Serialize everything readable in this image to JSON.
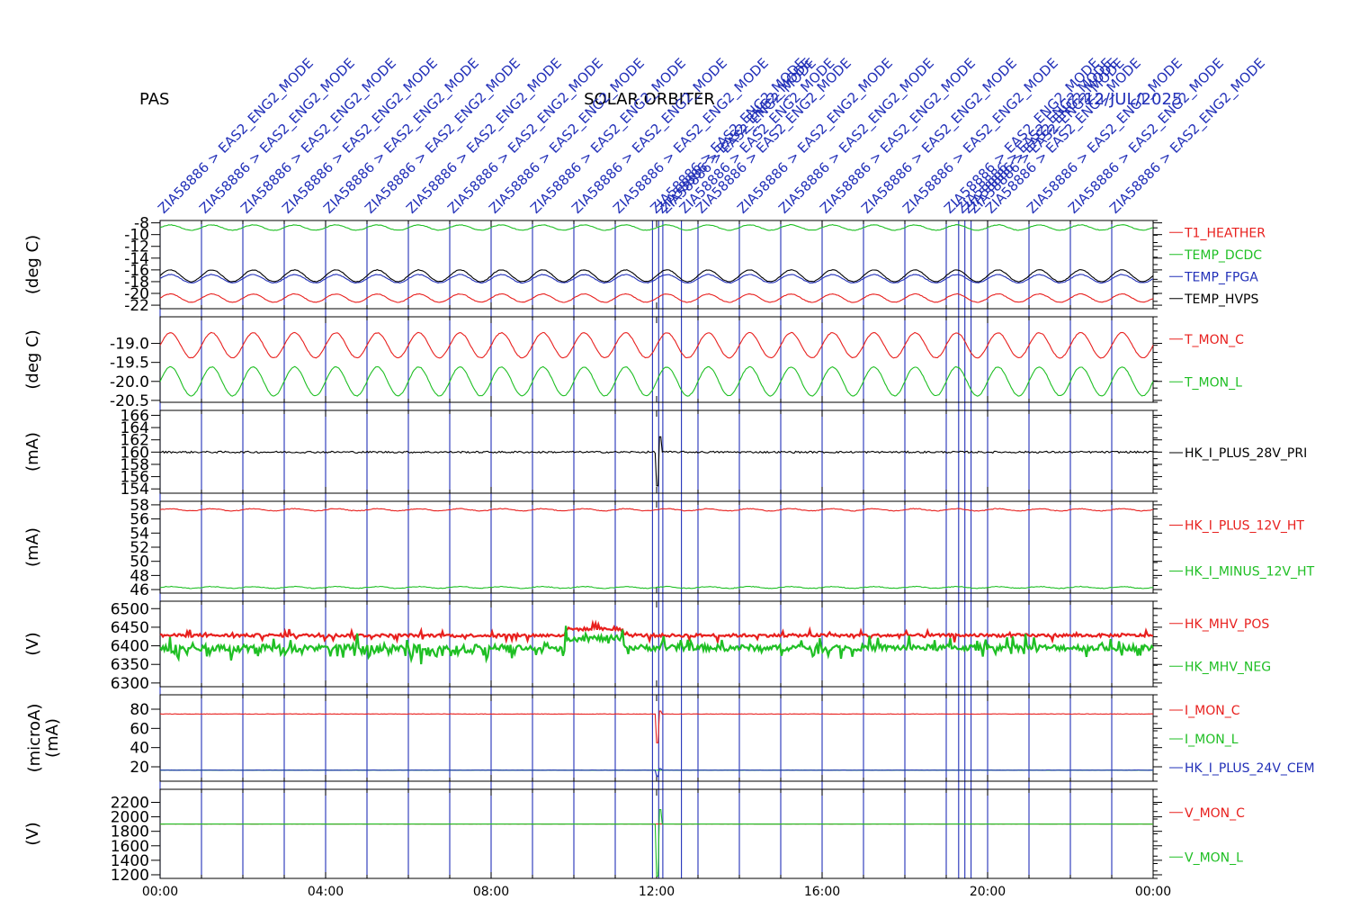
{
  "header": {
    "left": "PAS",
    "center": "SOLAR ORBITER",
    "right": "12/JUL/2025"
  },
  "colors": {
    "red": "#e8201e",
    "green": "#1fbf24",
    "blue": "#2230b8",
    "black": "#000000"
  },
  "chart_data": {
    "type": "line",
    "x_axis": {
      "range": [
        "00:00",
        "24:00"
      ],
      "ticks": [
        "00:00",
        "04:00",
        "08:00",
        "12:00",
        "16:00",
        "20:00",
        "00:00"
      ]
    },
    "event_lines": {
      "hours": [
        0,
        1,
        2,
        3,
        4,
        5,
        6,
        7,
        8,
        9,
        10,
        11,
        11.9,
        12.05,
        12.15,
        12.6,
        13,
        14,
        15,
        16,
        17,
        18,
        19,
        19.3,
        19.45,
        19.6,
        20,
        21,
        22,
        23
      ],
      "labels": [
        "ZIA58886 > EAS2_ENG2_MODE",
        "ZIA58886 > EAS2_ENG2_MODE",
        "ZIA58886 > EAS2_ENG2_MODE",
        "ZIA58886 > EAS2_ENG2_MODE",
        "ZIA58886 > EAS2_ENG2_MODE",
        "ZIA58886 > EAS2_ENG2_MODE",
        "ZIA58886 > EAS2_ENG2_MODE",
        "ZIA58886 > EAS2_ENG2_MODE",
        "ZIA58886 > EAS2_ENG2_MODE",
        "ZIA58886 > EAS2_ENG2_MODE",
        "ZIA58886 > EAS2_ENG2_MODE",
        "ZIA58886 > EAS2_ENG2_MODE",
        "ZIA58886 > EAS2_ENG2_MODE",
        "ZIA58886 > EAS2_ENG2_MODE",
        "ZIA58886 > EAS2_ENG2_MODE",
        "ZIA58886 > EAS2_ENG2_MODE",
        "ZIA58886 > EAS2_ENG2_MODE",
        "ZIA58886 > EAS2_ENG2_MODE",
        "ZIA58886 > EAS2_ENG2_MODE",
        "ZIA58886 > EAS2_ENG2_MODE",
        "ZIA58886 > EAS2_ENG2_MODE",
        "ZIA58886 > EAS2_ENG2_MODE",
        "ZIA58886 > EAS2_ENG2_MODE",
        "ZIA58886 > EAS2_ENG2_MODE",
        "ZIA58886 > EAS2_ENG2_MODE",
        "ZIA58886 > EAS2_ENG2_MODE",
        "ZIA58886 > EAS2_ENG2_MODE",
        "ZIA58886 > EAS2_ENG2_MODE",
        "ZIA58886 > EAS2_ENG2_MODE",
        "ZIA58886 > EAS2_ENG2_MODE"
      ]
    },
    "panels": [
      {
        "ylabel": "(deg C)",
        "ylim": [
          -22.6,
          -7.6
        ],
        "ticks": [
          -8,
          -10,
          -12,
          -14,
          -16,
          -18,
          -20,
          -22
        ],
        "tick_labels": [
          "-8",
          "-10",
          "-12",
          "-14",
          "-16",
          "-18",
          "-20",
          "-22"
        ],
        "series": [
          {
            "name": "T1_HEATHER",
            "color": "#e8201e",
            "mean": -20.8,
            "amp": 0.7,
            "periods": 24,
            "noise": 0.05
          },
          {
            "name": "TEMP_DCDC",
            "color": "#1fbf24",
            "mean": -8.8,
            "amp": 0.45,
            "periods": 24,
            "noise": 0.05
          },
          {
            "name": "TEMP_FPGA",
            "color": "#2230b8",
            "mean": -17.5,
            "amp": 0.7,
            "periods": 24,
            "noise": 0.05
          },
          {
            "name": "TEMP_HVPS",
            "color": "#000000",
            "mean": -17.0,
            "amp": 1.0,
            "periods": 24,
            "noise": 0.05
          }
        ]
      },
      {
        "ylabel": "(deg C)",
        "ylim": [
          -20.55,
          -18.3
        ],
        "ticks": [
          -19.0,
          -19.5,
          -20.0,
          -20.5
        ],
        "tick_labels": [
          "-19.0",
          "-19.5",
          "-20.0",
          "-20.5"
        ],
        "series": [
          {
            "name": "T_MON_C",
            "color": "#e8201e",
            "mean": -19.05,
            "amp": 0.33,
            "periods": 24,
            "noise": 0.01
          },
          {
            "name": "T_MON_L",
            "color": "#1fbf24",
            "mean": -20.0,
            "amp": 0.38,
            "periods": 24,
            "noise": 0.01
          }
        ]
      },
      {
        "ylabel": "(mA)",
        "ylim": [
          153.3,
          166.8
        ],
        "ticks": [
          166,
          164,
          162,
          160,
          158,
          156,
          154
        ],
        "tick_labels": [
          "166",
          "164",
          "162",
          "160",
          "158",
          "156",
          "154"
        ],
        "series": [
          {
            "name": "HK_I_PLUS_28V_PRI",
            "color": "#000000",
            "mean": 160.0,
            "amp": 0,
            "periods": 0,
            "noise": 0.15,
            "spike": {
              "hour": 12.05,
              "min": 154.5,
              "max": 162.5
            }
          }
        ]
      },
      {
        "ylabel": "(mA)",
        "ylim": [
          45.5,
          58.5
        ],
        "ticks": [
          58,
          56,
          54,
          52,
          50,
          48,
          46
        ],
        "tick_labels": [
          "58",
          "56",
          "54",
          "52",
          "50",
          "48",
          "46"
        ],
        "series": [
          {
            "name": "HK_I_PLUS_12V_HT",
            "color": "#e8201e",
            "mean": 57.3,
            "amp": 0.15,
            "periods": 24,
            "noise": 0.05
          },
          {
            "name": "HK_I_MINUS_12V_HT",
            "color": "#1fbf24",
            "mean": 46.3,
            "amp": 0.12,
            "periods": 24,
            "noise": 0.05
          }
        ]
      },
      {
        "ylabel": "(V)",
        "ylim": [
          6290,
          6520
        ],
        "ticks": [
          6500,
          6450,
          6400,
          6350,
          6300
        ],
        "tick_labels": [
          "6500",
          "6450",
          "6400",
          "6350",
          "6300"
        ],
        "series": [
          {
            "name": "HK_MHV_POS",
            "color": "#e8201e",
            "mean": 6428,
            "amp": 0,
            "periods": 0,
            "noise": 4,
            "jumpy": true
          },
          {
            "name": "HK_MHV_NEG",
            "color": "#1fbf24",
            "mean": 6395,
            "amp": 0,
            "periods": 0,
            "noise": 8,
            "jumpy": true
          }
        ]
      },
      {
        "ylabel": "(microA)",
        "ylabel2": "(mA)",
        "ylim": [
          5,
          95
        ],
        "ticks": [
          80,
          60,
          40,
          20
        ],
        "tick_labels": [
          "80",
          "60",
          "40",
          "20"
        ],
        "series": [
          {
            "name": "I_MON_C",
            "color": "#e8201e",
            "mean": 75,
            "amp": 0,
            "periods": 0,
            "noise": 0.2,
            "spike": {
              "hour": 12.05,
              "min": 45,
              "max": 78
            }
          },
          {
            "name": "I_MON_L",
            "color": "#1fbf24",
            "mean": 16.5,
            "amp": 0,
            "periods": 0,
            "noise": 0.1
          },
          {
            "name": "HK_I_PLUS_24V_CEM",
            "color": "#2230b8",
            "mean": 16.5,
            "amp": 0,
            "periods": 0,
            "noise": 0.1,
            "spike": {
              "hour": 12.05,
              "min": 10,
              "max": 18
            }
          }
        ]
      },
      {
        "ylabel": "(V)",
        "ylim": [
          1150,
          2380
        ],
        "ticks": [
          2200,
          2000,
          1800,
          1600,
          1400,
          1200
        ],
        "tick_labels": [
          "2200",
          "2000",
          "1800",
          "1600",
          "1400",
          "1200"
        ],
        "series": [
          {
            "name": "V_MON_C",
            "color": "#e8201e",
            "mean": 1900,
            "amp": 0,
            "periods": 0,
            "noise": 0
          },
          {
            "name": "V_MON_L",
            "color": "#1fbf24",
            "mean": 1900,
            "amp": 0,
            "periods": 0,
            "noise": 1,
            "spike": {
              "hour": 12.05,
              "min": 1180,
              "max": 2100
            }
          }
        ]
      }
    ]
  }
}
